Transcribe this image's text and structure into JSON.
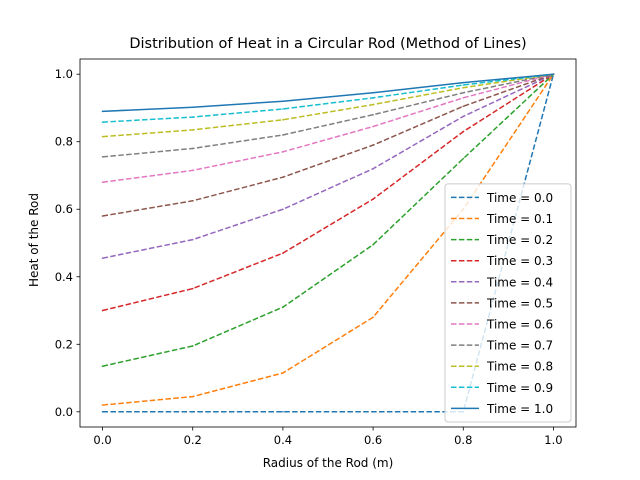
{
  "chart_data": {
    "type": "line",
    "title": "Distribution of Heat in a Circular Rod (Method of Lines)",
    "xlabel": "Radius of the Rod (m)",
    "ylabel": "Heat of the Rod",
    "xlim": [
      -0.05,
      1.05
    ],
    "ylim": [
      -0.045,
      1.045
    ],
    "x_ticks": [
      0.0,
      0.2,
      0.4,
      0.6,
      0.8,
      1.0
    ],
    "x_tick_labels": [
      "0.0",
      "0.2",
      "0.4",
      "0.6",
      "0.8",
      "1.0"
    ],
    "y_ticks": [
      0.0,
      0.2,
      0.4,
      0.6,
      0.8,
      1.0
    ],
    "y_tick_labels": [
      "0.0",
      "0.2",
      "0.4",
      "0.6",
      "0.8",
      "1.0"
    ],
    "grid": false,
    "legend_position": "lower-right",
    "x": [
      0.0,
      0.2,
      0.4,
      0.6,
      0.8,
      1.0
    ],
    "series": [
      {
        "name": "Time = 0.0",
        "color": "#1f77b4",
        "dashed": true,
        "values": [
          0.0,
          0.0,
          0.0,
          0.0,
          0.0,
          1.0
        ]
      },
      {
        "name": "Time = 0.1",
        "color": "#ff7f0e",
        "dashed": true,
        "values": [
          0.02,
          0.045,
          0.115,
          0.28,
          0.6,
          1.0
        ]
      },
      {
        "name": "Time = 0.2",
        "color": "#2ca02c",
        "dashed": true,
        "values": [
          0.135,
          0.195,
          0.31,
          0.495,
          0.75,
          1.0
        ]
      },
      {
        "name": "Time = 0.3",
        "color": "#d62728",
        "dashed": true,
        "values": [
          0.3,
          0.365,
          0.47,
          0.63,
          0.83,
          1.0
        ]
      },
      {
        "name": "Time = 0.4",
        "color": "#9467bd",
        "dashed": true,
        "values": [
          0.455,
          0.51,
          0.6,
          0.72,
          0.875,
          1.0
        ]
      },
      {
        "name": "Time = 0.5",
        "color": "#8c564b",
        "dashed": true,
        "values": [
          0.58,
          0.625,
          0.695,
          0.79,
          0.905,
          1.0
        ]
      },
      {
        "name": "Time = 0.6",
        "color": "#e377c2",
        "dashed": true,
        "values": [
          0.68,
          0.715,
          0.77,
          0.845,
          0.93,
          1.0
        ]
      },
      {
        "name": "Time = 0.7",
        "color": "#7f7f7f",
        "dashed": true,
        "values": [
          0.755,
          0.78,
          0.82,
          0.88,
          0.945,
          1.0
        ]
      },
      {
        "name": "Time = 0.8",
        "color": "#bcbd22",
        "dashed": true,
        "values": [
          0.815,
          0.835,
          0.865,
          0.91,
          0.96,
          1.0
        ]
      },
      {
        "name": "Time = 0.9",
        "color": "#17becf",
        "dashed": true,
        "values": [
          0.858,
          0.873,
          0.897,
          0.93,
          0.968,
          1.0
        ]
      },
      {
        "name": "Time = 1.0",
        "color": "#1f77b4",
        "dashed": false,
        "values": [
          0.89,
          0.902,
          0.92,
          0.945,
          0.975,
          1.0
        ]
      }
    ]
  }
}
